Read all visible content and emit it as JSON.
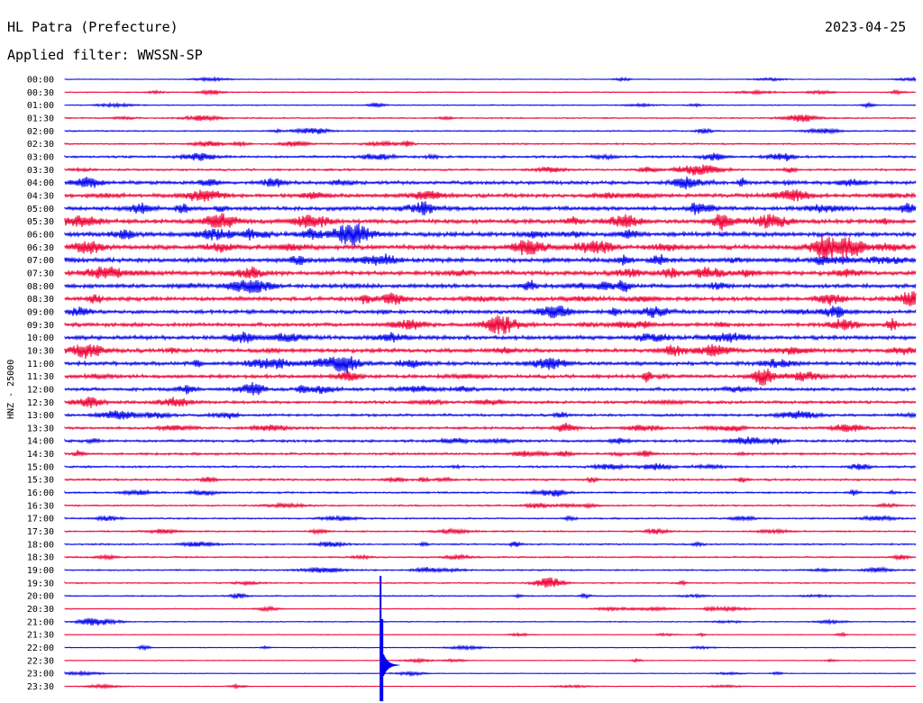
{
  "header": {
    "station": "HL Patra (Prefecture)",
    "date": "2023-04-25",
    "filter": "Applied filter: WWSSN-SP"
  },
  "chart_data": {
    "type": "line",
    "title": "HL Patra (Prefecture)",
    "ylabel": "HNZ - 25000",
    "rows": [
      "00:00",
      "00:30",
      "01:00",
      "01:30",
      "02:00",
      "02:30",
      "03:00",
      "03:30",
      "04:00",
      "04:30",
      "05:00",
      "05:30",
      "06:00",
      "06:30",
      "07:00",
      "07:30",
      "08:00",
      "08:30",
      "09:00",
      "09:30",
      "10:00",
      "10:30",
      "11:00",
      "11:30",
      "12:00",
      "12:30",
      "13:00",
      "13:30",
      "14:00",
      "14:30",
      "15:00",
      "15:30",
      "16:00",
      "16:30",
      "17:00",
      "17:30",
      "18:00",
      "18:30",
      "19:00",
      "19:30",
      "20:00",
      "20:30",
      "21:00",
      "21:30",
      "22:00",
      "22:30",
      "23:00",
      "23:30"
    ],
    "series_colors": [
      "#0000ee",
      "#ee0033"
    ],
    "row_noise_levels": [
      0.3,
      0.4,
      0.4,
      0.5,
      0.5,
      0.6,
      0.9,
      0.8,
      1.4,
      1.5,
      1.6,
      1.7,
      1.8,
      1.9,
      1.8,
      1.7,
      1.6,
      1.6,
      1.5,
      1.5,
      1.6,
      1.6,
      1.5,
      1.4,
      1.3,
      1.1,
      1.0,
      1.0,
      1.0,
      0.9,
      0.8,
      0.8,
      0.7,
      0.6,
      0.6,
      0.6,
      0.6,
      0.6,
      0.6,
      0.5,
      0.5,
      0.4,
      0.4,
      0.3,
      0.3,
      0.3,
      0.3,
      0.3
    ],
    "event": {
      "time": "19:30",
      "position": 0.371,
      "peak_amplitude": 9.0
    }
  }
}
